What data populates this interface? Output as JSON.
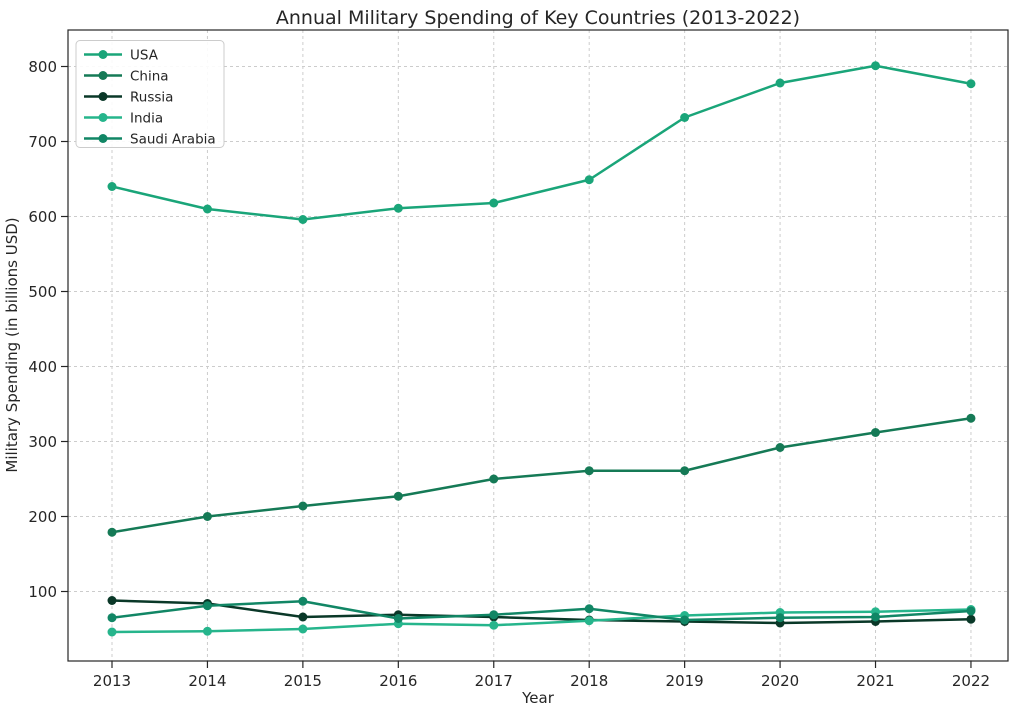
{
  "chart_data": {
    "type": "line",
    "title": "Annual Military Spending of Key Countries (2013-2022)",
    "xlabel": "Year",
    "ylabel": "Military Spending (in billions USD)",
    "x": [
      2013,
      2014,
      2015,
      2016,
      2017,
      2018,
      2019,
      2020,
      2021,
      2022
    ],
    "series": [
      {
        "name": "USA",
        "color": "#1aa579",
        "values": [
          640,
          610,
          596,
          611,
          618,
          649,
          732,
          778,
          801,
          777
        ]
      },
      {
        "name": "China",
        "color": "#157a56",
        "values": [
          179,
          200,
          214,
          227,
          250,
          261,
          261,
          292,
          312,
          331
        ]
      },
      {
        "name": "Russia",
        "color": "#0a3828",
        "values": [
          88,
          84,
          66,
          69,
          66,
          62,
          60,
          58,
          60,
          63
        ]
      },
      {
        "name": "India",
        "color": "#26b58c",
        "values": [
          46,
          47,
          50,
          57,
          55,
          61,
          68,
          72,
          73,
          76
        ]
      },
      {
        "name": "Saudi Arabia",
        "color": "#118665",
        "values": [
          65,
          81,
          87,
          64,
          69,
          77,
          62,
          65,
          66,
          74
        ]
      }
    ],
    "yticks": [
      100,
      200,
      300,
      400,
      500,
      600,
      700,
      800
    ],
    "xticks": [
      2013,
      2014,
      2015,
      2016,
      2017,
      2018,
      2019,
      2020,
      2021,
      2022
    ],
    "xlim": [
      2012.55,
      2022.45
    ],
    "ylim": [
      7,
      849
    ],
    "grid": true,
    "grid_style": "dashed",
    "legend_position": "upper left",
    "marker": "o"
  },
  "colors": {
    "background": "#ffffff",
    "grid": "#cccccc",
    "spine": "#262626",
    "text": "#262626"
  }
}
